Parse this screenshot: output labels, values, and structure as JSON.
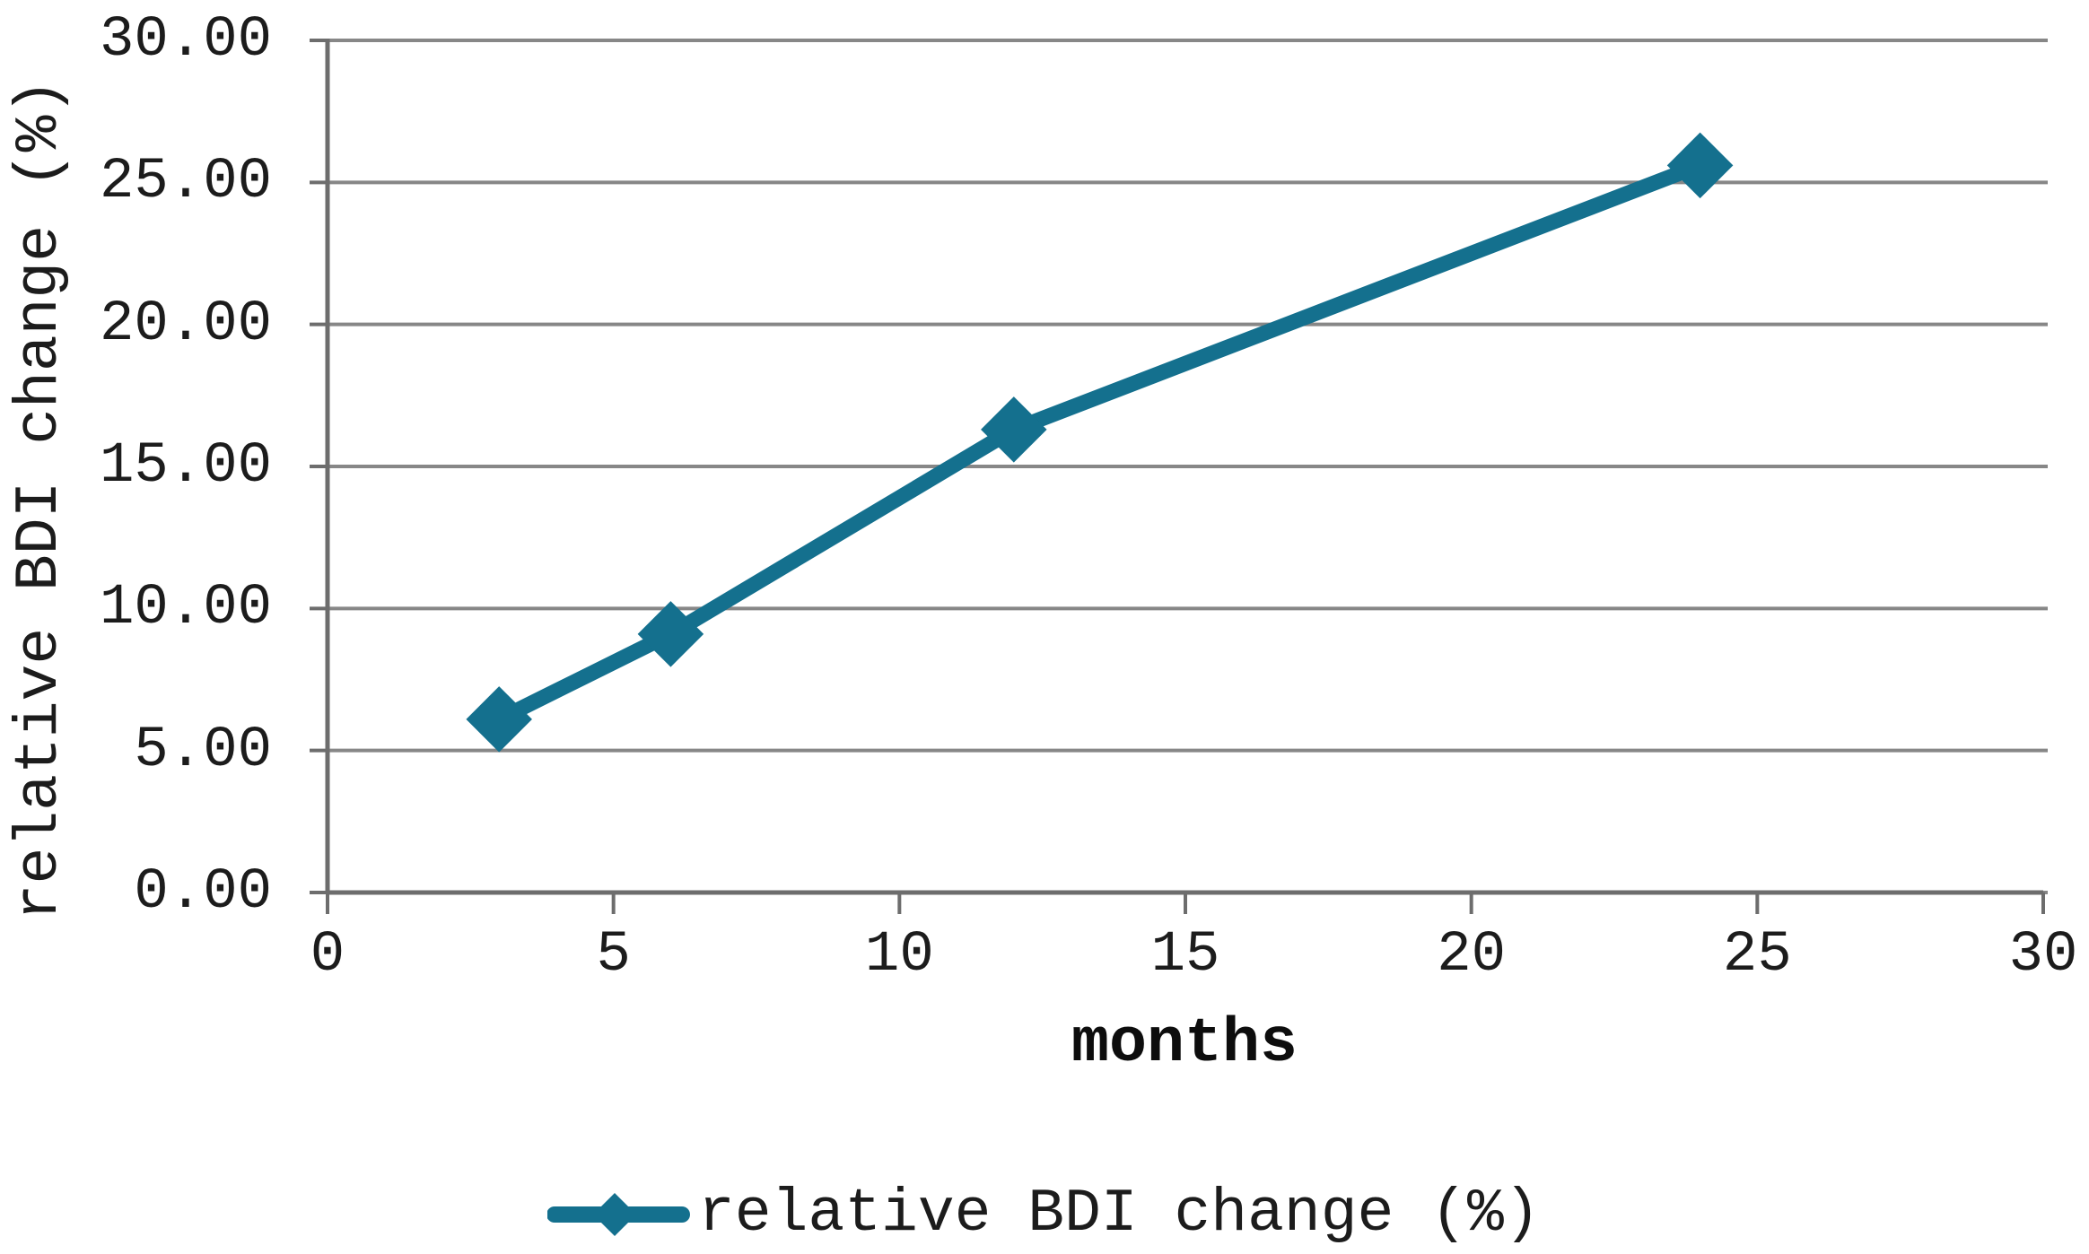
{
  "chart_data": {
    "type": "line",
    "title": "",
    "xlabel": "months",
    "ylabel": "relative BDI change (%)",
    "x": [
      3,
      6,
      12,
      24
    ],
    "series": [
      {
        "name": "relative BDI change (%)",
        "values": [
          6.1,
          9.1,
          16.3,
          25.6
        ]
      }
    ],
    "xlim": [
      0,
      30
    ],
    "ylim": [
      0,
      30
    ],
    "x_ticks": [
      {
        "value": 0,
        "label": "0"
      },
      {
        "value": 5,
        "label": "5"
      },
      {
        "value": 10,
        "label": "10"
      },
      {
        "value": 15,
        "label": "15"
      },
      {
        "value": 20,
        "label": "20"
      },
      {
        "value": 25,
        "label": "25"
      },
      {
        "value": 30,
        "label": "30"
      }
    ],
    "y_ticks": [
      {
        "value": 30,
        "label": "30.00"
      },
      {
        "value": 25,
        "label": "25.00"
      },
      {
        "value": 20,
        "label": "20.00"
      },
      {
        "value": 15,
        "label": "15.00"
      },
      {
        "value": 10,
        "label": "10.00"
      },
      {
        "value": 5,
        "label": "5.00"
      },
      {
        "value": 0,
        "label": "0.00"
      }
    ],
    "grid": true,
    "marker": "diamond",
    "legend_position": "bottom"
  },
  "colors": {
    "series": "#14708e",
    "grid": "#878787",
    "axis": "#6d6d6d",
    "text": "#1c1c1c"
  }
}
